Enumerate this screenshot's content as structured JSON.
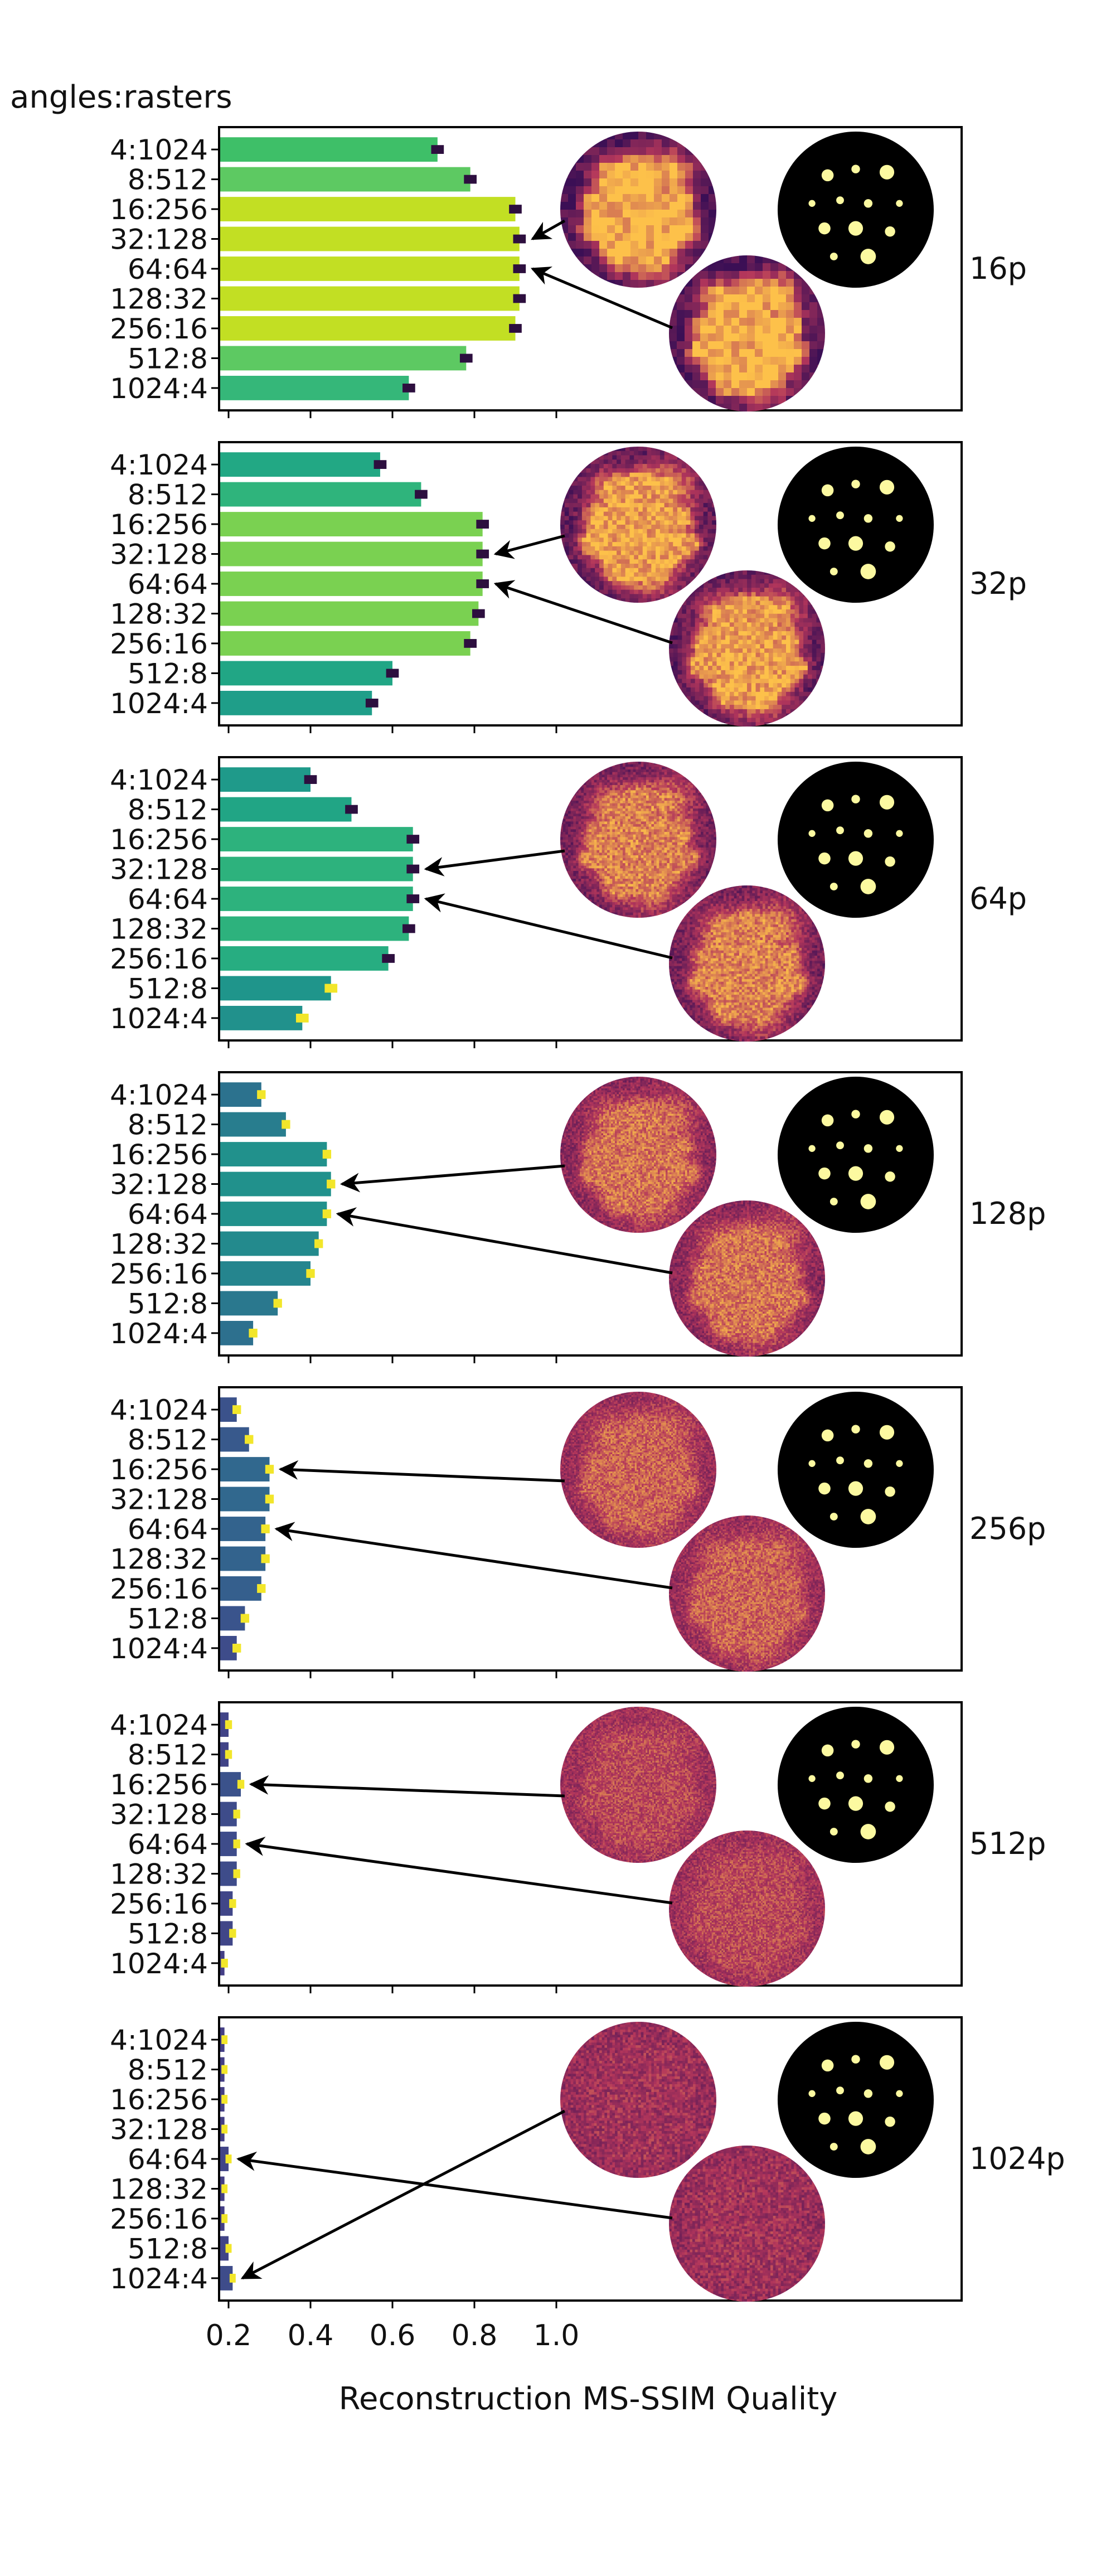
{
  "figure": {
    "yaxis_header": "angles:rasters",
    "xlabel": "Reconstruction MS-SSIM Quality",
    "xticks": [
      0.2,
      0.4,
      0.6,
      0.8,
      1.0
    ],
    "xtick_labels": [
      "0.2",
      "0.4",
      "0.6",
      "0.8",
      "1.0"
    ],
    "colors": {
      "frame": "#000000",
      "errorbar_dark": "#2d0f3f",
      "errorbar_bright": "#f2e62a",
      "arrow": "#000000",
      "recon_low": "#3b0f55",
      "recon_mid": "#b3365b",
      "recon_high": "#fdc14a",
      "truth_bg": "#000000",
      "truth_spot": "#fcf9a0"
    }
  },
  "chart_data": [
    {
      "type": "bar",
      "orientation": "horizontal",
      "panel_label": "16p",
      "categories": [
        "4:1024",
        "8:512",
        "16:256",
        "32:128",
        "64:64",
        "128:32",
        "256:16",
        "512:8",
        "1024:4"
      ],
      "values": [
        0.71,
        0.79,
        0.9,
        0.91,
        0.91,
        0.91,
        0.9,
        0.78,
        0.64
      ],
      "errors": [
        0.01,
        0.01,
        0.01,
        0.01,
        0.01,
        0.01,
        0.01,
        0.01,
        0.01
      ],
      "colors": [
        "#3ebf68",
        "#5dc962",
        "#c2df23",
        "#c2df23",
        "#c2df23",
        "#c2df23",
        "#c2df23",
        "#5dc962",
        "#35b779"
      ],
      "xlim": [
        0.17,
        1.0
      ],
      "arrows_from_thumbnails_to": [
        "32:128",
        "64:64"
      ]
    },
    {
      "type": "bar",
      "orientation": "horizontal",
      "panel_label": "32p",
      "categories": [
        "4:1024",
        "8:512",
        "16:256",
        "32:128",
        "64:64",
        "128:32",
        "256:16",
        "512:8",
        "1024:4"
      ],
      "values": [
        0.57,
        0.67,
        0.82,
        0.82,
        0.82,
        0.81,
        0.79,
        0.6,
        0.55
      ],
      "errors": [
        0.01,
        0.01,
        0.01,
        0.01,
        0.01,
        0.01,
        0.01,
        0.01,
        0.01
      ],
      "colors": [
        "#22a884",
        "#2fb47c",
        "#7ad151",
        "#7ad151",
        "#7ad151",
        "#7ad151",
        "#7ad151",
        "#21a685",
        "#1f9e89"
      ],
      "xlim": [
        0.17,
        1.0
      ],
      "arrows_from_thumbnails_to": [
        "32:128",
        "64:64"
      ]
    },
    {
      "type": "bar",
      "orientation": "horizontal",
      "panel_label": "64p",
      "categories": [
        "4:1024",
        "8:512",
        "16:256",
        "32:128",
        "64:64",
        "128:32",
        "256:16",
        "512:8",
        "1024:4"
      ],
      "values": [
        0.4,
        0.5,
        0.65,
        0.65,
        0.65,
        0.64,
        0.59,
        0.45,
        0.38
      ],
      "errors": [
        0.01,
        0.01,
        0.01,
        0.01,
        0.01,
        0.01,
        0.01,
        0.01,
        0.01
      ],
      "colors": [
        "#1f9a8a",
        "#21a585",
        "#2db27d",
        "#2db27d",
        "#2db27d",
        "#2db27d",
        "#27ad81",
        "#1f958b",
        "#21918c"
      ],
      "xlim": [
        0.17,
        1.0
      ],
      "arrows_from_thumbnails_to": [
        "32:128",
        "64:64"
      ]
    },
    {
      "type": "bar",
      "orientation": "horizontal",
      "panel_label": "128p",
      "categories": [
        "4:1024",
        "8:512",
        "16:256",
        "32:128",
        "64:64",
        "128:32",
        "256:16",
        "512:8",
        "1024:4"
      ],
      "values": [
        0.28,
        0.34,
        0.44,
        0.45,
        0.44,
        0.42,
        0.4,
        0.32,
        0.26
      ],
      "errors": [
        0.005,
        0.005,
        0.005,
        0.005,
        0.005,
        0.005,
        0.005,
        0.005,
        0.005
      ],
      "colors": [
        "#2c728e",
        "#287d8e",
        "#21918c",
        "#21918c",
        "#21918c",
        "#238a8d",
        "#25858e",
        "#2a788e",
        "#2d708e"
      ],
      "xlim": [
        0.17,
        1.0
      ],
      "arrows_from_thumbnails_to": [
        "32:128",
        "64:64"
      ]
    },
    {
      "type": "bar",
      "orientation": "horizontal",
      "panel_label": "256p",
      "categories": [
        "4:1024",
        "8:512",
        "16:256",
        "32:128",
        "64:64",
        "128:32",
        "256:16",
        "512:8",
        "1024:4"
      ],
      "values": [
        0.22,
        0.25,
        0.3,
        0.3,
        0.29,
        0.29,
        0.28,
        0.24,
        0.22
      ],
      "errors": [
        0.005,
        0.005,
        0.005,
        0.005,
        0.005,
        0.005,
        0.005,
        0.005,
        0.005
      ],
      "colors": [
        "#3b528b",
        "#38598c",
        "#31688e",
        "#31688e",
        "#33638d",
        "#33638d",
        "#355f8d",
        "#3a548c",
        "#3e4c8a"
      ],
      "xlim": [
        0.17,
        1.0
      ],
      "arrows_from_thumbnails_to": [
        "16:256",
        "64:64"
      ]
    },
    {
      "type": "bar",
      "orientation": "horizontal",
      "panel_label": "512p",
      "categories": [
        "4:1024",
        "8:512",
        "16:256",
        "32:128",
        "64:64",
        "128:32",
        "256:16",
        "512:8",
        "1024:4"
      ],
      "values": [
        0.2,
        0.2,
        0.23,
        0.22,
        0.22,
        0.22,
        0.21,
        0.21,
        0.19
      ],
      "errors": [
        0.003,
        0.003,
        0.003,
        0.003,
        0.003,
        0.003,
        0.003,
        0.003,
        0.003
      ],
      "colors": [
        "#414487",
        "#414487",
        "#3b528b",
        "#3e4c8a",
        "#3e4c8a",
        "#3e4c8a",
        "#404688",
        "#404688",
        "#433e85"
      ],
      "xlim": [
        0.17,
        1.0
      ],
      "arrows_from_thumbnails_to": [
        "16:256",
        "64:64"
      ]
    },
    {
      "type": "bar",
      "orientation": "horizontal",
      "panel_label": "1024p",
      "categories": [
        "4:1024",
        "8:512",
        "16:256",
        "32:128",
        "64:64",
        "128:32",
        "256:16",
        "512:8",
        "1024:4"
      ],
      "values": [
        0.19,
        0.19,
        0.19,
        0.19,
        0.2,
        0.19,
        0.19,
        0.2,
        0.21
      ],
      "errors": [
        0.002,
        0.002,
        0.002,
        0.002,
        0.002,
        0.002,
        0.002,
        0.002,
        0.002
      ],
      "colors": [
        "#433e85",
        "#433e85",
        "#433e85",
        "#433e85",
        "#414487",
        "#433e85",
        "#433e85",
        "#414487",
        "#3e4c8a"
      ],
      "xlim": [
        0.17,
        1.0
      ],
      "arrows_from_thumbnails_to": [
        "1024:4",
        "64:64"
      ]
    }
  ]
}
